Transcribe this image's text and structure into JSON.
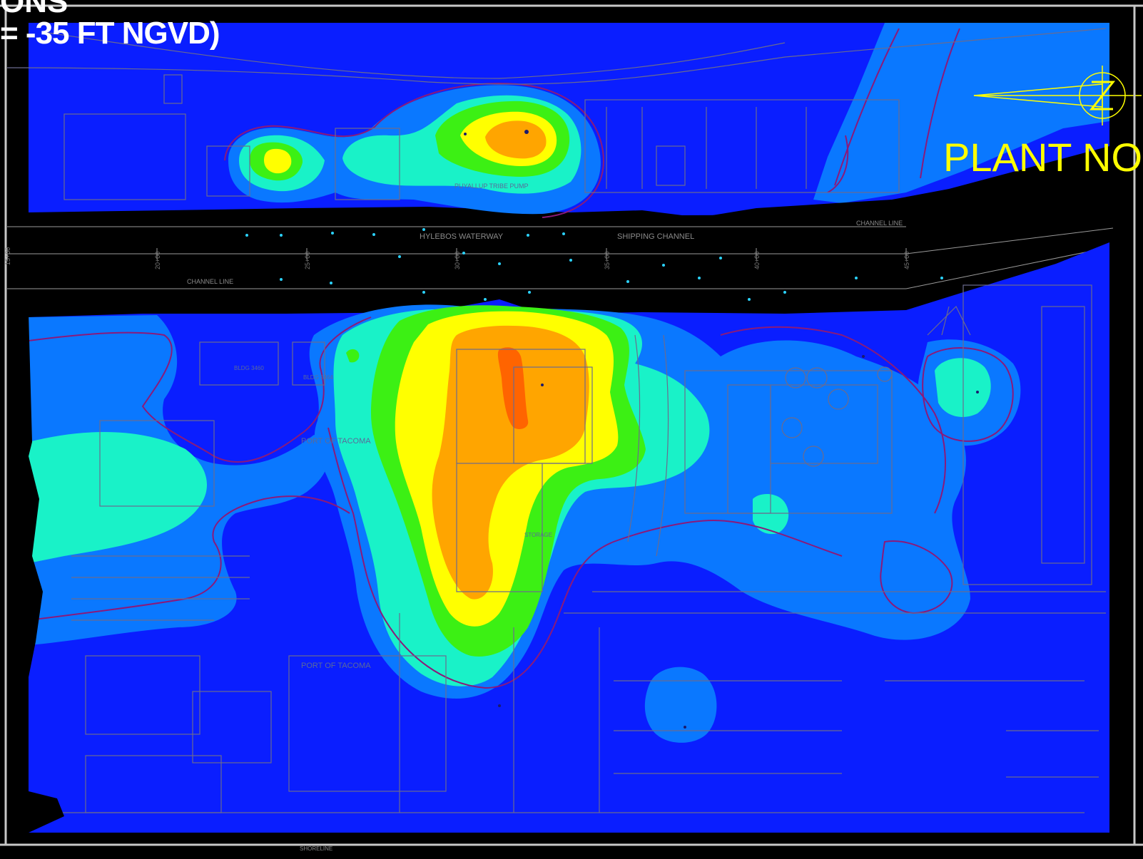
{
  "title": {
    "top_fragment": "ONS",
    "line": "= -35 FT NGVD)"
  },
  "north_label": "PLANT NO",
  "labels": {
    "waterway": "HYLEBOS WATERWAY",
    "shipping_channel": "SHIPPING CHANNEL",
    "channel_line_right": "CHANNEL LINE",
    "channel_line_left": "CHANNEL LINE",
    "port_tacoma_1": "PORT OF TACOMA",
    "port_tacoma_2": "PORT OF TACOMA",
    "bldg_1": "BLDG 3460",
    "bldg_2": "BLDG 3464",
    "pumphouse": "PUYALLUP TRIBE PUMP",
    "storage": "STORAGE",
    "shoreline": "SHORELINE"
  },
  "stations": [
    "15+00",
    "20+00",
    "25+00",
    "30+00",
    "35+00",
    "40+00",
    "45+00"
  ],
  "colors": {
    "background": "#000000",
    "level_1": "#0a1eff",
    "level_2": "#0a78ff",
    "level_3": "#19f2c8",
    "level_4": "#3cf014",
    "level_5": "#ffff00",
    "level_6": "#ffa500",
    "level_7": "#ff6400",
    "contour_line": "#8b1a7a",
    "north_arrow": "#ffff00",
    "title": "#ffffff"
  }
}
